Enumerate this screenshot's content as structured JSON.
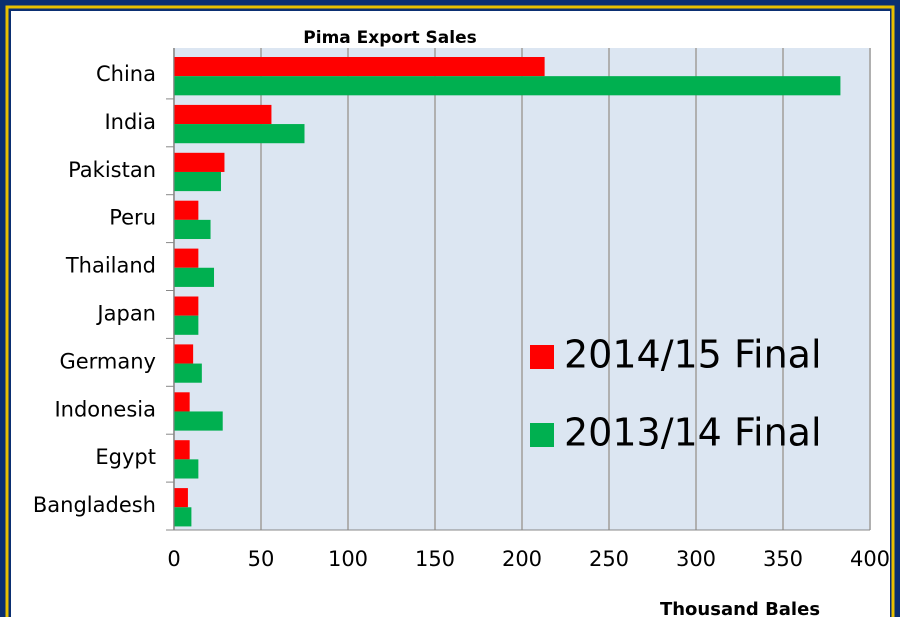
{
  "chart_data": {
    "type": "bar",
    "orientation": "horizontal",
    "title": "Pima Export Sales",
    "xlabel": "Thousand Bales",
    "categories": [
      "China",
      "India",
      "Pakistan",
      "Peru",
      "Thailand",
      "Japan",
      "Germany",
      "Indonesia",
      "Egypt",
      "Bangladesh"
    ],
    "series": [
      {
        "name": "2014/15 Final",
        "color": "#ff0000",
        "values": [
          213,
          56,
          29,
          14,
          14,
          14,
          11,
          9,
          9,
          8
        ]
      },
      {
        "name": "2013/14 Final",
        "color": "#00b050",
        "values": [
          383,
          75,
          27,
          21,
          23,
          14,
          16,
          28,
          14,
          10
        ]
      }
    ],
    "xlim": [
      0,
      400
    ],
    "xticks": [
      0,
      50,
      100,
      150,
      200,
      250,
      300,
      350,
      400
    ],
    "grid": true
  }
}
